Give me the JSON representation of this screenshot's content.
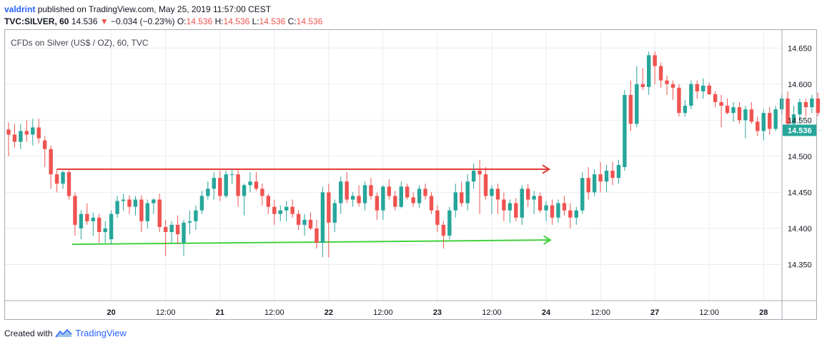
{
  "header": {
    "author": "valdrint",
    "published": "published on TradingView.com, May 25, 2019 11:57:00 CEST"
  },
  "ticker": {
    "symbol": "TVC:SILVER, 60",
    "last": "14.536",
    "change": "−0.034 (−0.23%)",
    "o_label": "O:",
    "o": "14.536",
    "h_label": "H:",
    "h": "14.536",
    "l_label": "L:",
    "l": "14.536",
    "c_label": "C:",
    "c": "14.536"
  },
  "footer": {
    "created_with": "Created with",
    "brand": "TradingView",
    "logo_icon": "tradingview-logo-icon"
  },
  "colors": {
    "up": "#26a69a",
    "down": "#ef5350",
    "grid": "#e8edf1",
    "resistance": "#e53935",
    "support": "#43d13f",
    "price_label_bg": "#26a69a"
  },
  "chart_data": {
    "type": "candlestick",
    "title": "CFDs on Silver (US$ / OZ), 60, TVC",
    "y_ticks": [
      "14.650",
      "14.600",
      "14.550",
      "14.500",
      "14.450",
      "14.400",
      "14.350"
    ],
    "y_tick_values": [
      14.65,
      14.6,
      14.55,
      14.5,
      14.45,
      14.4,
      14.35
    ],
    "ylim": [
      14.3,
      14.675
    ],
    "x_ticks": [
      "20",
      "12:00",
      "21",
      "12:00",
      "22",
      "12:00",
      "23",
      "12:00",
      "24",
      "12:00",
      "27",
      "12:00",
      "28"
    ],
    "x_tick_bold": [
      true,
      false,
      true,
      false,
      true,
      false,
      true,
      false,
      true,
      false,
      true,
      false,
      true
    ],
    "x_tick_index": [
      17,
      26,
      35,
      44,
      53,
      62,
      71,
      80,
      89,
      98,
      107,
      116,
      125
    ],
    "last_price_label": "14.536",
    "last_price": 14.536,
    "candles": [
      {
        "o": 14.537,
        "h": 14.547,
        "l": 14.5,
        "c": 14.53
      },
      {
        "o": 14.53,
        "h": 14.545,
        "l": 14.512,
        "c": 14.52
      },
      {
        "o": 14.52,
        "h": 14.545,
        "l": 14.51,
        "c": 14.535
      },
      {
        "o": 14.535,
        "h": 14.55,
        "l": 14.52,
        "c": 14.53
      },
      {
        "o": 14.53,
        "h": 14.552,
        "l": 14.515,
        "c": 14.54
      },
      {
        "o": 14.54,
        "h": 14.552,
        "l": 14.518,
        "c": 14.525
      },
      {
        "o": 14.522,
        "h": 14.528,
        "l": 14.485,
        "c": 14.51
      },
      {
        "o": 14.51,
        "h": 14.515,
        "l": 14.455,
        "c": 14.475
      },
      {
        "o": 14.475,
        "h": 14.482,
        "l": 14.45,
        "c": 14.462
      },
      {
        "o": 14.462,
        "h": 14.48,
        "l": 14.455,
        "c": 14.478
      },
      {
        "o": 14.478,
        "h": 14.482,
        "l": 14.44,
        "c": 14.445
      },
      {
        "o": 14.445,
        "h": 14.45,
        "l": 14.39,
        "c": 14.405
      },
      {
        "o": 14.4,
        "h": 14.425,
        "l": 14.385,
        "c": 14.42
      },
      {
        "o": 14.42,
        "h": 14.435,
        "l": 14.405,
        "c": 14.41
      },
      {
        "o": 14.41,
        "h": 14.422,
        "l": 14.39,
        "c": 14.415
      },
      {
        "o": 14.415,
        "h": 14.42,
        "l": 14.38,
        "c": 14.395
      },
      {
        "o": 14.395,
        "h": 14.41,
        "l": 14.38,
        "c": 14.4
      },
      {
        "o": 14.385,
        "h": 14.425,
        "l": 14.378,
        "c": 14.42
      },
      {
        "o": 14.42,
        "h": 14.445,
        "l": 14.415,
        "c": 14.438
      },
      {
        "o": 14.438,
        "h": 14.448,
        "l": 14.425,
        "c": 14.44
      },
      {
        "o": 14.44,
        "h": 14.446,
        "l": 14.42,
        "c": 14.43
      },
      {
        "o": 14.43,
        "h": 14.445,
        "l": 14.418,
        "c": 14.44
      },
      {
        "o": 14.44,
        "h": 14.446,
        "l": 14.395,
        "c": 14.41
      },
      {
        "o": 14.41,
        "h": 14.44,
        "l": 14.4,
        "c": 14.435
      },
      {
        "o": 14.435,
        "h": 14.442,
        "l": 14.42,
        "c": 14.44
      },
      {
        "o": 14.44,
        "h": 14.448,
        "l": 14.395,
        "c": 14.402
      },
      {
        "o": 14.402,
        "h": 14.412,
        "l": 14.362,
        "c": 14.395
      },
      {
        "o": 14.395,
        "h": 14.41,
        "l": 14.38,
        "c": 14.405
      },
      {
        "o": 14.405,
        "h": 14.418,
        "l": 14.378,
        "c": 14.392
      },
      {
        "o": 14.38,
        "h": 14.412,
        "l": 14.362,
        "c": 14.408
      },
      {
        "o": 14.408,
        "h": 14.425,
        "l": 14.392,
        "c": 14.41
      },
      {
        "o": 14.41,
        "h": 14.432,
        "l": 14.398,
        "c": 14.425
      },
      {
        "o": 14.425,
        "h": 14.452,
        "l": 14.42,
        "c": 14.445
      },
      {
        "o": 14.445,
        "h": 14.465,
        "l": 14.44,
        "c": 14.455
      },
      {
        "o": 14.455,
        "h": 14.478,
        "l": 14.44,
        "c": 14.47
      },
      {
        "o": 14.47,
        "h": 14.48,
        "l": 14.438,
        "c": 14.445
      },
      {
        "o": 14.445,
        "h": 14.48,
        "l": 14.442,
        "c": 14.475
      },
      {
        "o": 14.475,
        "h": 14.482,
        "l": 14.462,
        "c": 14.475
      },
      {
        "o": 14.475,
        "h": 14.482,
        "l": 14.43,
        "c": 14.445
      },
      {
        "o": 14.445,
        "h": 14.462,
        "l": 14.418,
        "c": 14.46
      },
      {
        "o": 14.46,
        "h": 14.478,
        "l": 14.45,
        "c": 14.465
      },
      {
        "o": 14.465,
        "h": 14.478,
        "l": 14.452,
        "c": 14.455
      },
      {
        "o": 14.455,
        "h": 14.462,
        "l": 14.432,
        "c": 14.445
      },
      {
        "o": 14.445,
        "h": 14.448,
        "l": 14.42,
        "c": 14.43
      },
      {
        "o": 14.43,
        "h": 14.44,
        "l": 14.405,
        "c": 14.42
      },
      {
        "o": 14.42,
        "h": 14.432,
        "l": 14.41,
        "c": 14.425
      },
      {
        "o": 14.425,
        "h": 14.438,
        "l": 14.41,
        "c": 14.43
      },
      {
        "o": 14.43,
        "h": 14.44,
        "l": 14.415,
        "c": 14.42
      },
      {
        "o": 14.42,
        "h": 14.425,
        "l": 14.398,
        "c": 14.405
      },
      {
        "o": 14.405,
        "h": 14.42,
        "l": 14.39,
        "c": 14.412
      },
      {
        "o": 14.412,
        "h": 14.422,
        "l": 14.398,
        "c": 14.4
      },
      {
        "o": 14.4,
        "h": 14.412,
        "l": 14.372,
        "c": 14.38
      },
      {
        "o": 14.38,
        "h": 14.458,
        "l": 14.36,
        "c": 14.45
      },
      {
        "o": 14.45,
        "h": 14.462,
        "l": 14.36,
        "c": 14.408
      },
      {
        "o": 14.408,
        "h": 14.44,
        "l": 14.395,
        "c": 14.435
      },
      {
        "o": 14.435,
        "h": 14.472,
        "l": 14.42,
        "c": 14.465
      },
      {
        "o": 14.465,
        "h": 14.478,
        "l": 14.435,
        "c": 14.44
      },
      {
        "o": 14.44,
        "h": 14.45,
        "l": 14.43,
        "c": 14.445
      },
      {
        "o": 14.445,
        "h": 14.46,
        "l": 14.43,
        "c": 14.435
      },
      {
        "o": 14.435,
        "h": 14.465,
        "l": 14.425,
        "c": 14.46
      },
      {
        "o": 14.46,
        "h": 14.47,
        "l": 14.44,
        "c": 14.445
      },
      {
        "o": 14.445,
        "h": 14.45,
        "l": 14.412,
        "c": 14.425
      },
      {
        "o": 14.425,
        "h": 14.46,
        "l": 14.412,
        "c": 14.458
      },
      {
        "o": 14.458,
        "h": 14.468,
        "l": 14.44,
        "c": 14.445
      },
      {
        "o": 14.445,
        "h": 14.452,
        "l": 14.425,
        "c": 14.43
      },
      {
        "o": 14.43,
        "h": 14.465,
        "l": 14.428,
        "c": 14.458
      },
      {
        "o": 14.458,
        "h": 14.462,
        "l": 14.44,
        "c": 14.443
      },
      {
        "o": 14.443,
        "h": 14.45,
        "l": 14.43,
        "c": 14.435
      },
      {
        "o": 14.435,
        "h": 14.46,
        "l": 14.428,
        "c": 14.455
      },
      {
        "o": 14.455,
        "h": 14.462,
        "l": 14.44,
        "c": 14.445
      },
      {
        "o": 14.445,
        "h": 14.45,
        "l": 14.42,
        "c": 14.425
      },
      {
        "o": 14.425,
        "h": 14.432,
        "l": 14.395,
        "c": 14.405
      },
      {
        "o": 14.405,
        "h": 14.41,
        "l": 14.372,
        "c": 14.39
      },
      {
        "o": 14.39,
        "h": 14.43,
        "l": 14.385,
        "c": 14.425
      },
      {
        "o": 14.425,
        "h": 14.462,
        "l": 14.415,
        "c": 14.45
      },
      {
        "o": 14.45,
        "h": 14.465,
        "l": 14.43,
        "c": 14.435
      },
      {
        "o": 14.435,
        "h": 14.475,
        "l": 14.425,
        "c": 14.465
      },
      {
        "o": 14.465,
        "h": 14.49,
        "l": 14.455,
        "c": 14.48
      },
      {
        "o": 14.48,
        "h": 14.495,
        "l": 14.42,
        "c": 14.475
      },
      {
        "o": 14.475,
        "h": 14.485,
        "l": 14.44,
        "c": 14.445
      },
      {
        "o": 14.445,
        "h": 14.46,
        "l": 14.42,
        "c": 14.455
      },
      {
        "o": 14.455,
        "h": 14.462,
        "l": 14.42,
        "c": 14.44
      },
      {
        "o": 14.44,
        "h": 14.45,
        "l": 14.41,
        "c": 14.425
      },
      {
        "o": 14.425,
        "h": 14.44,
        "l": 14.408,
        "c": 14.435
      },
      {
        "o": 14.435,
        "h": 14.442,
        "l": 14.41,
        "c": 14.415
      },
      {
        "o": 14.415,
        "h": 14.46,
        "l": 14.405,
        "c": 14.455
      },
      {
        "o": 14.455,
        "h": 14.462,
        "l": 14.43,
        "c": 14.44
      },
      {
        "o": 14.44,
        "h": 14.452,
        "l": 14.42,
        "c": 14.445
      },
      {
        "o": 14.445,
        "h": 14.45,
        "l": 14.422,
        "c": 14.425
      },
      {
        "o": 14.425,
        "h": 14.438,
        "l": 14.41,
        "c": 14.432
      },
      {
        "o": 14.432,
        "h": 14.44,
        "l": 14.405,
        "c": 14.415
      },
      {
        "o": 14.415,
        "h": 14.44,
        "l": 14.408,
        "c": 14.435
      },
      {
        "o": 14.435,
        "h": 14.445,
        "l": 14.418,
        "c": 14.425
      },
      {
        "o": 14.425,
        "h": 14.435,
        "l": 14.4,
        "c": 14.415
      },
      {
        "o": 14.415,
        "h": 14.43,
        "l": 14.405,
        "c": 14.425
      },
      {
        "o": 14.425,
        "h": 14.478,
        "l": 14.42,
        "c": 14.47
      },
      {
        "o": 14.47,
        "h": 14.485,
        "l": 14.44,
        "c": 14.45
      },
      {
        "o": 14.45,
        "h": 14.482,
        "l": 14.445,
        "c": 14.475
      },
      {
        "o": 14.475,
        "h": 14.492,
        "l": 14.45,
        "c": 14.465
      },
      {
        "o": 14.465,
        "h": 14.488,
        "l": 14.45,
        "c": 14.48
      },
      {
        "o": 14.48,
        "h": 14.492,
        "l": 14.46,
        "c": 14.47
      },
      {
        "o": 14.47,
        "h": 14.495,
        "l": 14.462,
        "c": 14.488
      },
      {
        "o": 14.485,
        "h": 14.592,
        "l": 14.48,
        "c": 14.585
      },
      {
        "o": 14.585,
        "h": 14.605,
        "l": 14.535,
        "c": 14.545
      },
      {
        "o": 14.545,
        "h": 14.625,
        "l": 14.54,
        "c": 14.6
      },
      {
        "o": 14.6,
        "h": 14.622,
        "l": 14.592,
        "c": 14.596
      },
      {
        "o": 14.596,
        "h": 14.645,
        "l": 14.585,
        "c": 14.64
      },
      {
        "o": 14.64,
        "h": 14.645,
        "l": 14.6,
        "c": 14.625
      },
      {
        "o": 14.625,
        "h": 14.63,
        "l": 14.595,
        "c": 14.605
      },
      {
        "o": 14.605,
        "h": 14.612,
        "l": 14.585,
        "c": 14.6
      },
      {
        "o": 14.6,
        "h": 14.605,
        "l": 14.578,
        "c": 14.595
      },
      {
        "o": 14.595,
        "h": 14.6,
        "l": 14.555,
        "c": 14.56
      },
      {
        "o": 14.56,
        "h": 14.578,
        "l": 14.555,
        "c": 14.57
      },
      {
        "o": 14.57,
        "h": 14.605,
        "l": 14.565,
        "c": 14.6
      },
      {
        "o": 14.6,
        "h": 14.605,
        "l": 14.58,
        "c": 14.59
      },
      {
        "o": 14.59,
        "h": 14.608,
        "l": 14.58,
        "c": 14.598
      },
      {
        "o": 14.598,
        "h": 14.602,
        "l": 14.585,
        "c": 14.586
      },
      {
        "o": 14.586,
        "h": 14.59,
        "l": 14.568,
        "c": 14.575
      },
      {
        "o": 14.575,
        "h": 14.585,
        "l": 14.54,
        "c": 14.57
      },
      {
        "o": 14.57,
        "h": 14.58,
        "l": 14.558,
        "c": 14.56
      },
      {
        "o": 14.56,
        "h": 14.575,
        "l": 14.548,
        "c": 14.568
      },
      {
        "o": 14.568,
        "h": 14.575,
        "l": 14.545,
        "c": 14.55
      },
      {
        "o": 14.55,
        "h": 14.57,
        "l": 14.525,
        "c": 14.565
      },
      {
        "o": 14.565,
        "h": 14.575,
        "l": 14.545,
        "c": 14.548
      },
      {
        "o": 14.548,
        "h": 14.555,
        "l": 14.528,
        "c": 14.535
      },
      {
        "o": 14.535,
        "h": 14.565,
        "l": 14.522,
        "c": 14.56
      },
      {
        "o": 14.56,
        "h": 14.568,
        "l": 14.53,
        "c": 14.538
      },
      {
        "o": 14.538,
        "h": 14.57,
        "l": 14.535,
        "c": 14.565
      },
      {
        "o": 14.565,
        "h": 14.585,
        "l": 14.558,
        "c": 14.58
      },
      {
        "o": 14.58,
        "h": 14.59,
        "l": 14.535,
        "c": 14.545
      },
      {
        "o": 14.545,
        "h": 14.57,
        "l": 14.535,
        "c": 14.558
      },
      {
        "o": 14.558,
        "h": 14.58,
        "l": 14.545,
        "c": 14.575
      },
      {
        "o": 14.575,
        "h": 14.58,
        "l": 14.555,
        "c": 14.568
      },
      {
        "o": 14.568,
        "h": 14.585,
        "l": 14.56,
        "c": 14.58
      },
      {
        "o": 14.58,
        "h": 14.588,
        "l": 14.555,
        "c": 14.56
      },
      {
        "o": 14.56,
        "h": 14.575,
        "l": 14.545,
        "c": 14.57
      },
      {
        "o": 14.57,
        "h": 14.575,
        "l": 14.54,
        "c": 14.548
      },
      {
        "o": 14.548,
        "h": 14.568,
        "l": 14.54,
        "c": 14.565
      },
      {
        "o": 14.565,
        "h": 14.57,
        "l": 14.538,
        "c": 14.545
      },
      {
        "o": 14.536,
        "h": 14.536,
        "l": 14.536,
        "c": 14.536
      }
    ],
    "annotations": [
      {
        "name": "resistance-arrow",
        "kind": "arrow",
        "color": "resistance",
        "from": [
          8.0,
          14.482
        ],
        "to": [
          89.5,
          14.482
        ]
      },
      {
        "name": "support-arrow",
        "kind": "arrow",
        "color": "support",
        "from": [
          10.5,
          14.378
        ],
        "to": [
          89.7,
          14.384
        ]
      }
    ]
  }
}
